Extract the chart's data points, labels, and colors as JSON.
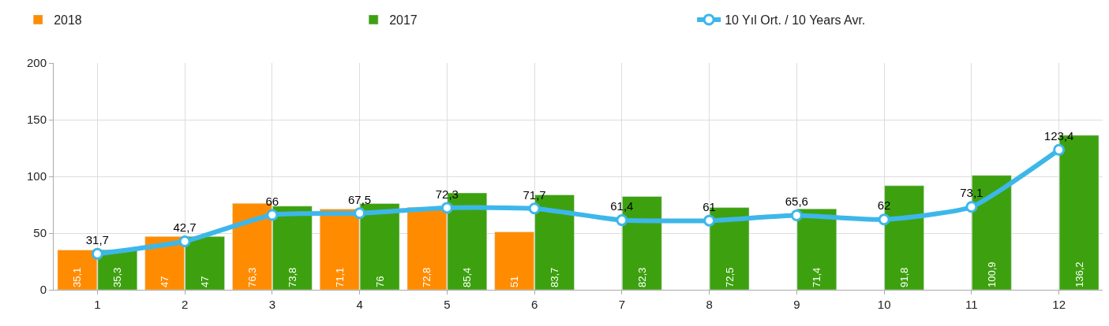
{
  "chart_data": {
    "type": "bar",
    "categories": [
      "1",
      "2",
      "3",
      "4",
      "5",
      "6",
      "7",
      "8",
      "9",
      "10",
      "11",
      "12"
    ],
    "series": [
      {
        "name": "2018",
        "color": "#ff8c00",
        "values": [
          35.1,
          47,
          76.3,
          71.1,
          72.8,
          51,
          null,
          null,
          null,
          null,
          null,
          null
        ],
        "value_labels": [
          "35,1",
          "47",
          "76,3",
          "71,1",
          "72,8",
          "51",
          null,
          null,
          null,
          null,
          null,
          null
        ]
      },
      {
        "name": "2017",
        "color": "#3da10f",
        "values": [
          35.3,
          47,
          73.8,
          76,
          85.4,
          83.7,
          82.3,
          72.5,
          71.4,
          91.8,
          100.9,
          136.2
        ],
        "value_labels": [
          "35,3",
          "47",
          "73,8",
          "76",
          "85,4",
          "83,7",
          "82,3",
          "72,5",
          "71,4",
          "91,8",
          "100,9",
          "136,2"
        ]
      },
      {
        "name": "10 Yıl Ort. / 10 Years Avr.",
        "type": "line",
        "color": "#3db7ea",
        "marker": "circle",
        "values": [
          31.7,
          42.7,
          66,
          67.5,
          72.3,
          71.7,
          61.4,
          61,
          65.6,
          62,
          73.1,
          123.4
        ],
        "value_labels": [
          "31,7",
          "42,7",
          "66",
          "67,5",
          "72,3",
          "71,7",
          "61,4",
          "61",
          "65,6",
          "62",
          "73,1",
          "123,4"
        ]
      }
    ],
    "ylim": [
      0,
      200
    ],
    "yticks": [
      0,
      50,
      100,
      150,
      200
    ],
    "grid": true,
    "legend": "top"
  }
}
